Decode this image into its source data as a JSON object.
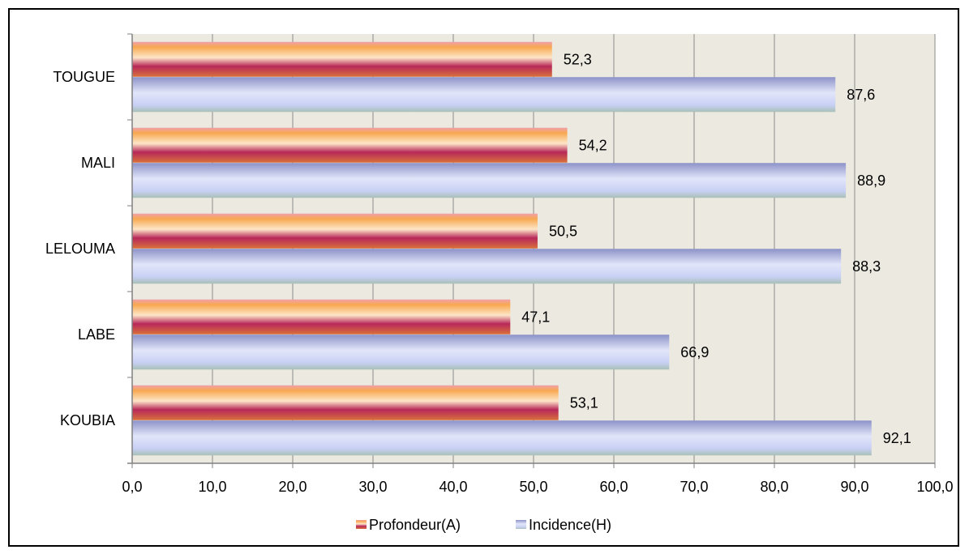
{
  "chart_data": {
    "type": "bar",
    "orientation": "horizontal",
    "categories": [
      "KOUBIA",
      "LABE",
      "LELOUMA",
      "MALI",
      "TOUGUE"
    ],
    "series": [
      {
        "name": "Profondeur(A)",
        "values": [
          53.1,
          47.1,
          50.5,
          54.2,
          52.3
        ],
        "labels": [
          "53,1",
          "47,1",
          "50,5",
          "54,2",
          "52,3"
        ],
        "color": "#f4a040"
      },
      {
        "name": "Incidence(H)",
        "values": [
          92.1,
          66.9,
          88.3,
          88.9,
          87.6
        ],
        "labels": [
          "92,1",
          "66,9",
          "88,3",
          "88,9",
          "87,6"
        ],
        "color": "#9ea6e0"
      }
    ],
    "xlim": [
      0,
      100
    ],
    "xticks": [
      0,
      10,
      20,
      30,
      40,
      50,
      60,
      70,
      80,
      90,
      100
    ],
    "xtick_labels": [
      "0,0",
      "10,0",
      "20,0",
      "30,0",
      "40,0",
      "50,0",
      "60,0",
      "70,0",
      "80,0",
      "90,0",
      "100,0"
    ],
    "grid": true,
    "plot_background": "#ece9e0",
    "legend_position": "bottom"
  }
}
